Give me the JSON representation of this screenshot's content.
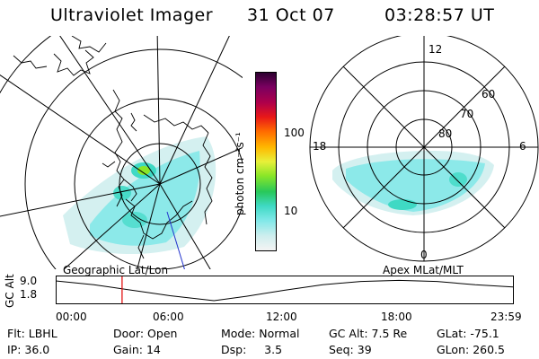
{
  "header": {
    "instrument": "Ultraviolet Imager",
    "date": "31 Oct 07",
    "time": "03:28:57 UT"
  },
  "left_panel": {
    "label": "Geographic Lat/Lon"
  },
  "right_panel": {
    "label": "Apex MLat/MLT",
    "mlt_labels": {
      "top": "12",
      "left": "18",
      "right": "6",
      "bottom": "0"
    },
    "lat_labels": [
      "60",
      "70",
      "80"
    ]
  },
  "colorbar": {
    "unit_label": "photon cm⁻²s⁻¹",
    "tick_labels": [
      "100",
      "10"
    ],
    "scale": "log",
    "colors": [
      "#f4f4f4",
      "#cfeeee",
      "#7fe8e8",
      "#3fd9c4",
      "#28c85a",
      "#8ae628",
      "#e8f03a",
      "#ffb800",
      "#ff6a00",
      "#e81818",
      "#b0004a",
      "#7a0060",
      "#2c0030"
    ]
  },
  "altitude_plot": {
    "ylabel": "GC Alt",
    "y_ticks": [
      "9.0",
      "1.8"
    ],
    "x_ticks": [
      "00:00",
      "06:00",
      "12:00",
      "18:00",
      "23:59"
    ],
    "marker_color": "#e00000",
    "marker_time_hours": 3.48,
    "altitude_curve": {
      "x_hours": [
        0,
        2,
        4,
        6,
        8.3,
        10,
        12,
        14,
        16,
        18,
        20,
        22,
        23.98
      ],
      "y_re": [
        9.0,
        7.6,
        5.6,
        3.6,
        1.8,
        3.4,
        5.6,
        7.6,
        8.8,
        9.2,
        8.8,
        7.6,
        6.8
      ]
    }
  },
  "info_rows": [
    [
      {
        "key": "Flt:",
        "value": "LBHL"
      },
      {
        "key": "Door:",
        "value": "Open"
      },
      {
        "key": "Mode:",
        "value": "Normal"
      },
      {
        "key": "GC Alt:",
        "value": "7.5 Re"
      },
      {
        "key": "GLat:",
        "value": "-75.1"
      }
    ],
    [
      {
        "key": "IP:",
        "value": "36.0"
      },
      {
        "key": "Gain:",
        "value": "14"
      },
      {
        "key": "Dsp:",
        "value": "3.5"
      },
      {
        "key": "Seq:",
        "value": "39"
      },
      {
        "key": "GLon:",
        "value": "260.5"
      }
    ]
  ]
}
